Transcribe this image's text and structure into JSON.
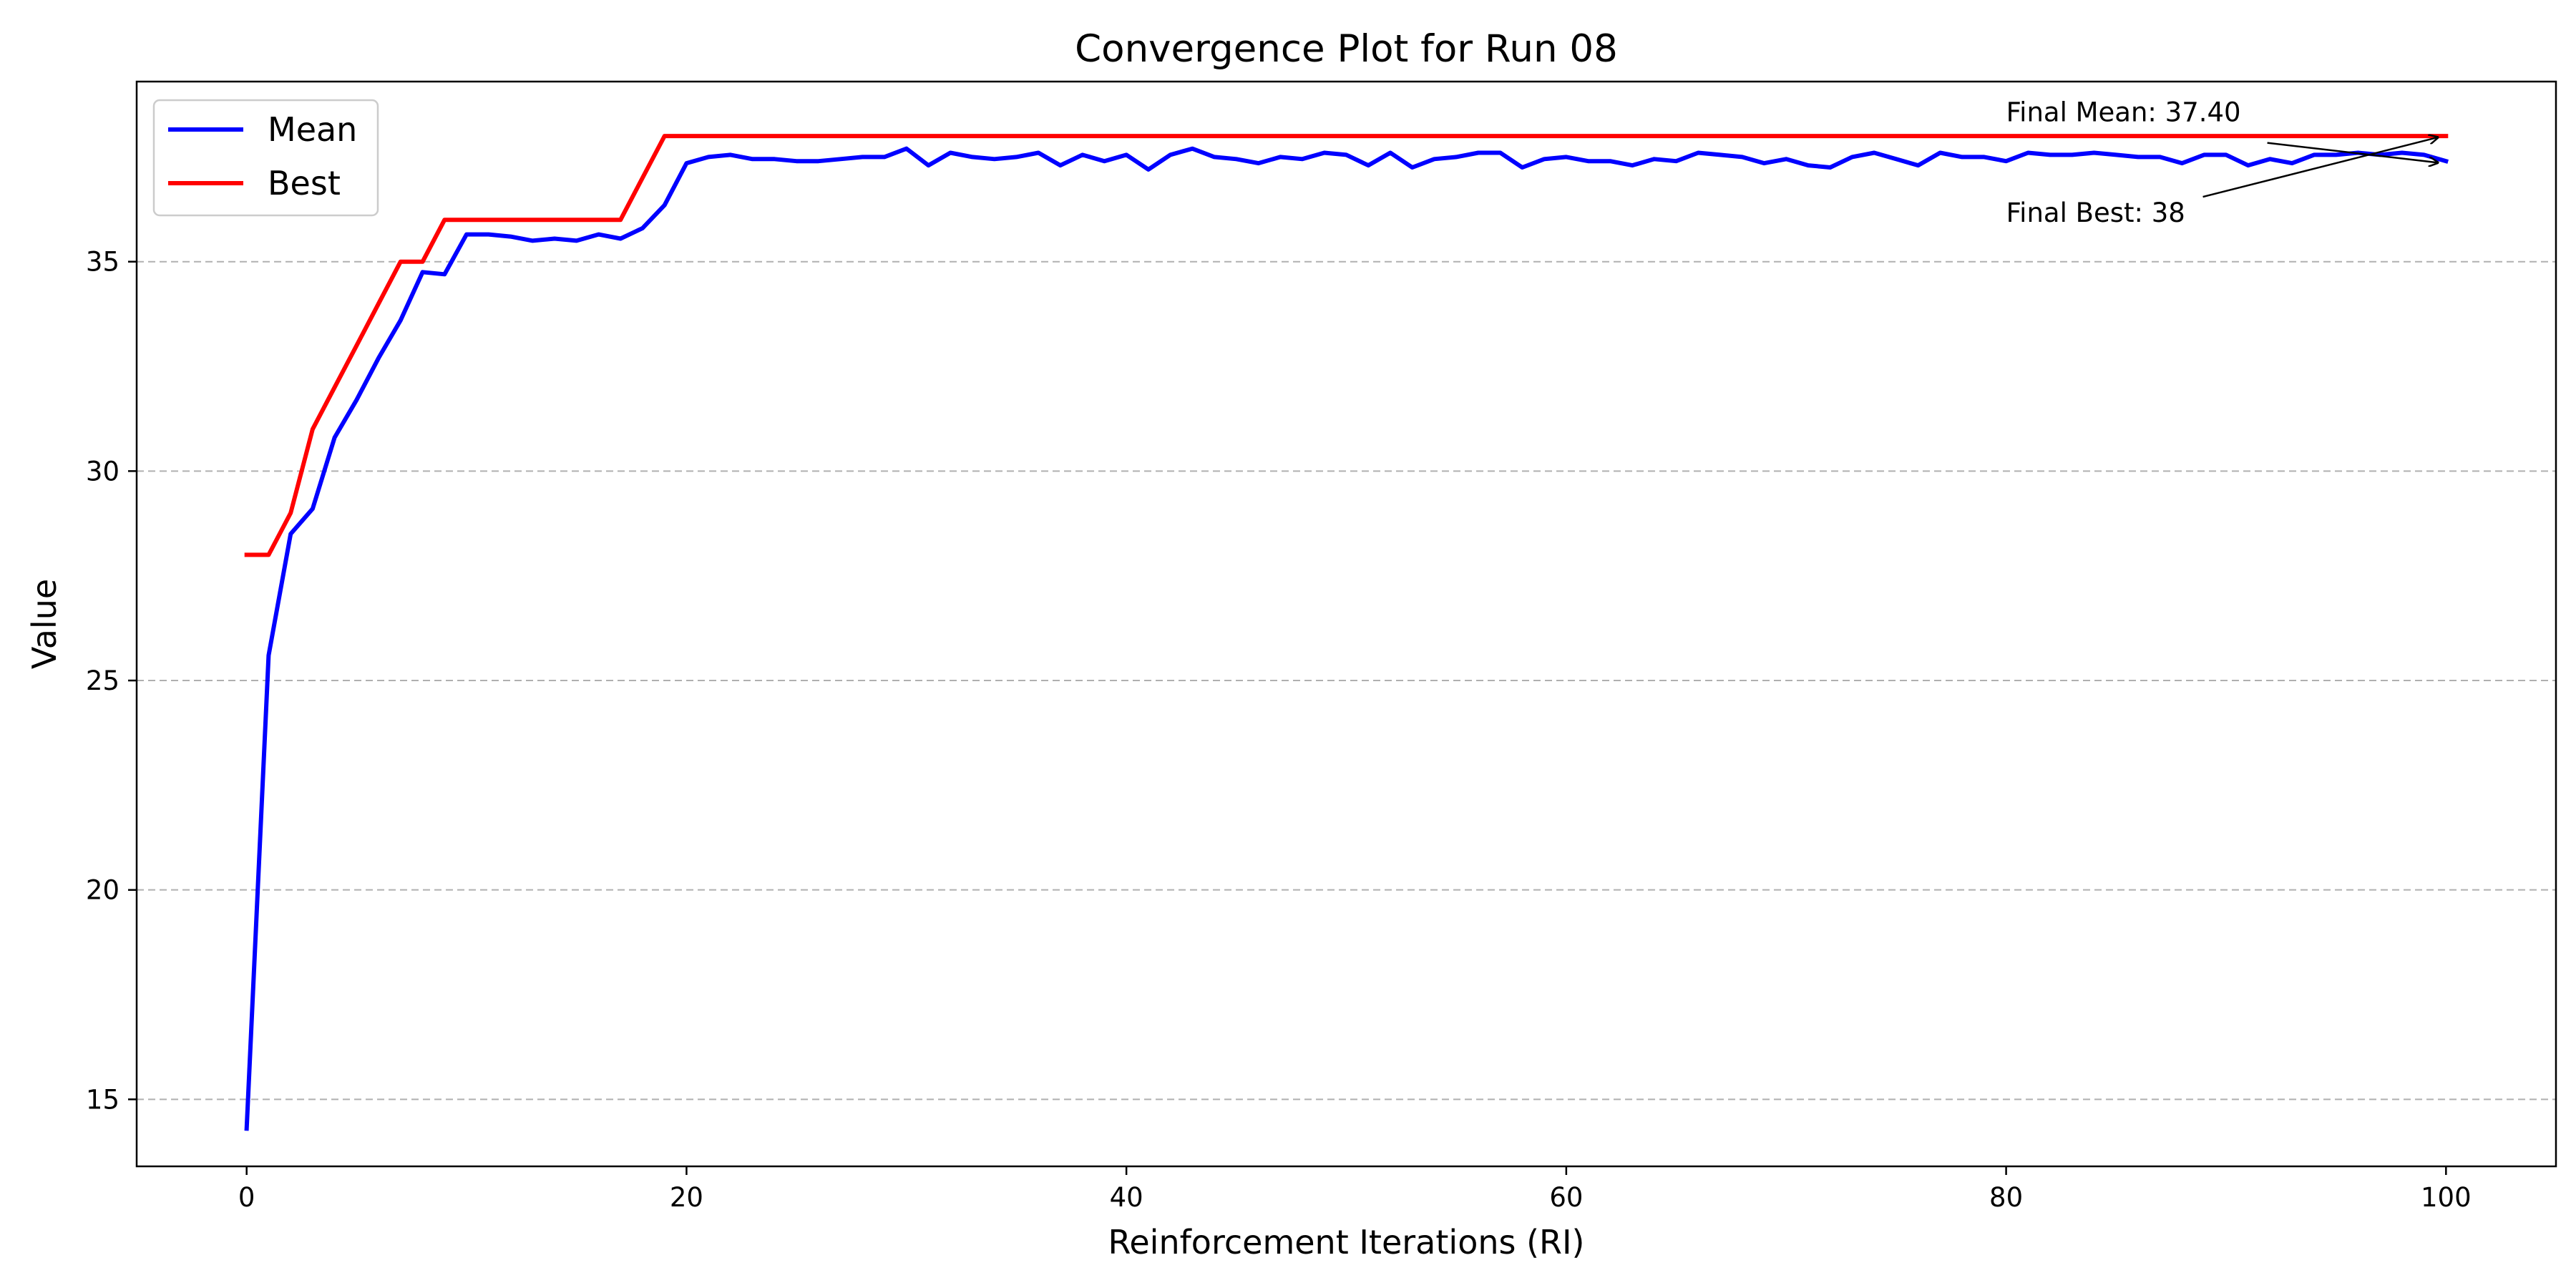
{
  "chart_data": {
    "type": "line",
    "title": "Convergence Plot for Run 08",
    "xlabel": "Reinforcement Iterations (RI)",
    "ylabel": "Value",
    "xlim": [
      -5,
      105
    ],
    "ylim": [
      13.4,
      39.3
    ],
    "xticks": [
      0,
      20,
      40,
      60,
      80,
      100
    ],
    "yticks": [
      15,
      20,
      25,
      30,
      35
    ],
    "grid": "y-dashed",
    "legend_position": "top-left",
    "series": [
      {
        "name": "Mean",
        "color": "#0000ff",
        "x": [
          0,
          1,
          2,
          3,
          4,
          5,
          6,
          7,
          8,
          9,
          10,
          11,
          12,
          13,
          14,
          15,
          16,
          17,
          18,
          19,
          20,
          21,
          22,
          23,
          24,
          25,
          26,
          27,
          28,
          29,
          30,
          31,
          32,
          33,
          34,
          35,
          36,
          37,
          38,
          39,
          40,
          41,
          42,
          43,
          44,
          45,
          46,
          47,
          48,
          49,
          50,
          51,
          52,
          53,
          54,
          55,
          56,
          57,
          58,
          59,
          60,
          61,
          62,
          63,
          64,
          65,
          66,
          67,
          68,
          69,
          70,
          71,
          72,
          73,
          74,
          75,
          76,
          77,
          78,
          79,
          80,
          81,
          82,
          83,
          84,
          85,
          86,
          87,
          88,
          89,
          90,
          91,
          92,
          93,
          94,
          95,
          96,
          97,
          98,
          99,
          100
        ],
        "y": [
          14.3,
          25.6,
          28.5,
          29.1,
          30.8,
          31.7,
          32.7,
          33.6,
          34.75,
          34.7,
          35.65,
          35.65,
          35.6,
          35.5,
          35.55,
          35.5,
          35.65,
          35.55,
          35.8,
          36.35,
          37.35,
          37.5,
          37.55,
          37.45,
          37.45,
          37.4,
          37.4,
          37.45,
          37.5,
          37.5,
          37.7,
          37.3,
          37.6,
          37.5,
          37.45,
          37.5,
          37.6,
          37.3,
          37.55,
          37.4,
          37.55,
          37.2,
          37.55,
          37.7,
          37.5,
          37.45,
          37.35,
          37.5,
          37.45,
          37.6,
          37.55,
          37.3,
          37.6,
          37.25,
          37.45,
          37.5,
          37.6,
          37.6,
          37.25,
          37.45,
          37.5,
          37.4,
          37.4,
          37.3,
          37.45,
          37.4,
          37.6,
          37.55,
          37.5,
          37.35,
          37.45,
          37.3,
          37.25,
          37.5,
          37.6,
          37.45,
          37.3,
          37.6,
          37.5,
          37.5,
          37.4,
          37.6,
          37.55,
          37.55,
          37.6,
          37.55,
          37.5,
          37.5,
          37.35,
          37.55,
          37.55,
          37.3,
          37.45,
          37.35,
          37.55,
          37.55,
          37.6,
          37.55,
          37.6,
          37.55,
          37.4
        ]
      },
      {
        "name": "Best",
        "color": "#ff0000",
        "x": [
          0,
          1,
          2,
          3,
          4,
          5,
          6,
          7,
          8,
          9,
          10,
          11,
          12,
          13,
          14,
          15,
          16,
          17,
          18,
          19,
          20,
          25,
          30,
          35,
          40,
          45,
          50,
          55,
          60,
          65,
          70,
          75,
          80,
          85,
          90,
          95,
          100
        ],
        "y": [
          28,
          28,
          29,
          31,
          32,
          33,
          34,
          35,
          35,
          36,
          36,
          36,
          36,
          36,
          36,
          36,
          36,
          36,
          37,
          38,
          38,
          38,
          38,
          38,
          38,
          38,
          38,
          38,
          38,
          38,
          38,
          38,
          38,
          38,
          38,
          38,
          38
        ]
      }
    ],
    "annotations": [
      {
        "text": "Final Mean: 37.40",
        "point_x": 100,
        "point_y": 37.4,
        "text_x": 80,
        "text_y": 38.35
      },
      {
        "text": "Final Best: 38",
        "point_x": 100,
        "point_y": 38,
        "text_x": 80,
        "text_y": 35.95
      }
    ]
  }
}
